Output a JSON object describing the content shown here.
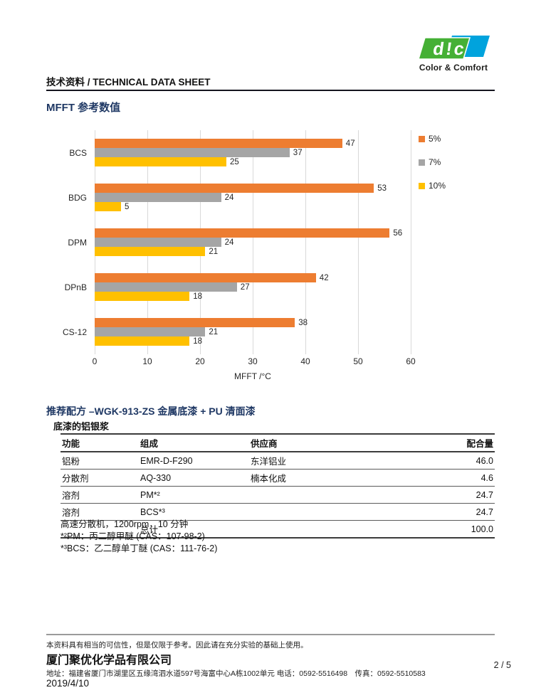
{
  "logo": {
    "mark": "d!c",
    "tagline": "Color & Comfort",
    "green": "#45B035",
    "blue": "#00A3DD"
  },
  "header": {
    "title": "技术资料 / TECHNICAL DATA SHEET"
  },
  "chart_section": {
    "title": "MFFT 参考数值"
  },
  "chart_data": {
    "type": "bar",
    "orientation": "horizontal",
    "title": "MFFT 参考数值",
    "categories": [
      "BCS",
      "BDG",
      "DPM",
      "DPnB",
      "CS-12"
    ],
    "series": [
      {
        "name": "5%",
        "color": "#ED7D31",
        "values": [
          47,
          53,
          56,
          42,
          38
        ]
      },
      {
        "name": "7%",
        "color": "#A5A5A5",
        "values": [
          37,
          24,
          24,
          27,
          21
        ]
      },
      {
        "name": "10%",
        "color": "#FFC000",
        "values": [
          25,
          5,
          21,
          18,
          18
        ]
      }
    ],
    "xlabel": "MFFT /°C",
    "xlim": [
      0,
      60
    ],
    "xticks": [
      0,
      10,
      20,
      30,
      40,
      50,
      60
    ],
    "grid": true,
    "legend_position": "right"
  },
  "formula": {
    "title": "推荐配方 –WGK-913-ZS 金属底漆  + PU 清面漆",
    "subtitle": "底漆的铝银浆",
    "table": {
      "headers": [
        "功能",
        "组成",
        "供应商",
        "配合量"
      ],
      "rows": [
        [
          "铝粉",
          "EMR-D-F290",
          "东洋铝业",
          "46.0"
        ],
        [
          "分散剂",
          "AQ-330",
          "楠本化成",
          "4.6"
        ],
        [
          "溶剂",
          "PM*²",
          "",
          "24.7"
        ],
        [
          "溶剂",
          "BCS*³",
          "",
          "24.7"
        ],
        [
          "",
          "总计",
          "",
          "100.0"
        ]
      ]
    },
    "notes": [
      "高速分散机，1200rpm，10 分钟",
      "*²PM：丙二醇甲醚 (CAS：107-98-2)",
      "*³BCS：乙二醇单丁醚 (CAS：111-76-2)"
    ]
  },
  "footer": {
    "disclaimer": "本资料具有相当的可信性，但是仅限于参考。因此请在充分实验的基础上使用。",
    "company": "厦门聚优化学品有限公司",
    "address": "地址：福建省厦门市湖里区五缘湾泗水道597号海富中心A栋1002单元 电话：0592-5516498　传真：0592-5510583",
    "page": "2 / 5",
    "date": "2019/4/10"
  },
  "colors": {
    "accent_navy": "#1F3864",
    "bar_orange": "#ED7D31",
    "bar_gray": "#A5A5A5",
    "bar_yellow": "#FFC000"
  }
}
